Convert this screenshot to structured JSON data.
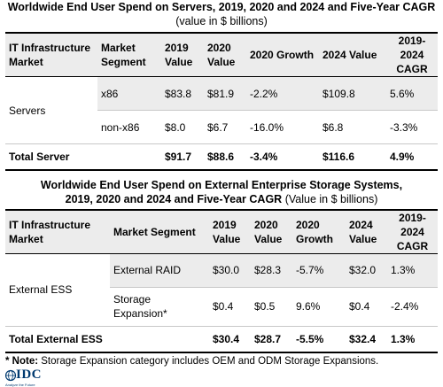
{
  "table1": {
    "title": "Worldwide End User Spend on Servers, 2019, 2020 and 2024 and Five-Year CAGR",
    "subtitle": "(value in $ billions)",
    "headers": {
      "market": "IT Infrastructure Market",
      "segment": "Market Segment",
      "y2019": "2019 Value",
      "y2020": "2020 Value",
      "growth": "2020 Growth",
      "y2024": "2024 Value",
      "cagr": "2019-2024 CAGR"
    },
    "group_label": "Servers",
    "rows": [
      {
        "segment": "x86",
        "v2019": "$83.8",
        "v2020": "$81.9",
        "growth": "-2.2%",
        "v2024": "$109.8",
        "cagr": "5.6%"
      },
      {
        "segment": "non-x86",
        "v2019": "$8.0",
        "v2020": "$6.7",
        "growth": "-16.0%",
        "v2024": "$6.8",
        "cagr": "-3.3%"
      }
    ],
    "total": {
      "label": "Total Server",
      "v2019": "$91.7",
      "v2020": "$88.6",
      "growth": "-3.4%",
      "v2024": "$116.6",
      "cagr": "4.9%"
    }
  },
  "table2": {
    "title_line1": "Worldwide End User Spend on External Enterprise Storage Systems,",
    "title_line2": "2019, 2020 and 2024 and Five-Year CAGR",
    "subtitle": "(Value in $ billions)",
    "headers": {
      "market": "IT Infrastructure Market",
      "segment": "Market Segment",
      "y2019": "2019 Value",
      "y2020": "2020 Value",
      "growth": "2020 Growth",
      "y2024": "2024 Value",
      "cagr": "2019-2024 CAGR"
    },
    "group_label": "External ESS",
    "rows": [
      {
        "segment": "External RAID",
        "v2019": "$30.0",
        "v2020": "$28.3",
        "growth": "-5.7%",
        "v2024": "$32.0",
        "cagr": "1.3%"
      },
      {
        "segment": "Storage Expansion*",
        "v2019": "$0.4",
        "v2020": "$0.5",
        "growth": "9.6%",
        "v2024": "$0.4",
        "cagr": "-2.4%"
      }
    ],
    "total": {
      "label": "Total External ESS",
      "v2019": "$30.4",
      "v2020": "$28.7",
      "growth": "-5.5%",
      "v2024": "$32.4",
      "cagr": "1.3%"
    }
  },
  "footnote": {
    "label": "* Note:",
    "text": "Storage Expansion category includes OEM and ODM Storage Expansions."
  },
  "logo": {
    "text": "IDC",
    "tagline": "Analyze the Future"
  }
}
